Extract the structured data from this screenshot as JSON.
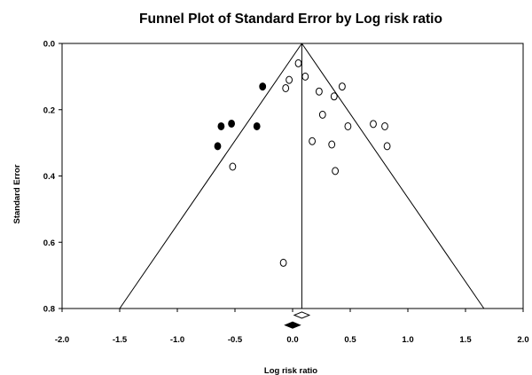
{
  "chart_data": {
    "type": "scatter",
    "title": "Funnel Plot of Standard Error by Log risk ratio",
    "xlabel": "Log risk ratio",
    "ylabel": "Standard Error",
    "xlim": [
      -2.0,
      2.0
    ],
    "ylim": [
      0.0,
      0.8
    ],
    "y_axis_inverted": true,
    "x_ticks": [
      "-2.0",
      "-1.5",
      "-1.0",
      "-0.5",
      "0.0",
      "0.5",
      "1.0",
      "1.5",
      "2.0"
    ],
    "y_ticks": [
      "0.0",
      "0.2",
      "0.4",
      "0.6",
      "0.8"
    ],
    "pooled_estimate": 0.08,
    "funnel": {
      "top": [
        0.08,
        0.0
      ],
      "bottom_left": [
        -1.5,
        0.8
      ],
      "bottom_right": [
        1.66,
        0.8
      ]
    },
    "series": [
      {
        "marker": "open-circle",
        "points": [
          [
            0.05,
            0.06
          ],
          [
            0.11,
            0.1
          ],
          [
            -0.03,
            0.11
          ],
          [
            -0.06,
            0.135
          ],
          [
            0.23,
            0.145
          ],
          [
            0.36,
            0.16
          ],
          [
            0.43,
            0.13
          ],
          [
            0.26,
            0.215
          ],
          [
            0.48,
            0.25
          ],
          [
            0.7,
            0.243
          ],
          [
            0.8,
            0.25
          ],
          [
            0.82,
            0.31
          ],
          [
            0.17,
            0.295
          ],
          [
            0.34,
            0.305
          ],
          [
            0.37,
            0.385
          ],
          [
            -0.52,
            0.372
          ],
          [
            -0.08,
            0.662
          ]
        ]
      },
      {
        "marker": "filled-circle",
        "points": [
          [
            -0.26,
            0.13
          ],
          [
            -0.53,
            0.242
          ],
          [
            -0.62,
            0.25
          ],
          [
            -0.31,
            0.25
          ],
          [
            -0.65,
            0.31
          ]
        ]
      }
    ],
    "summary_diamonds": [
      {
        "style": "open",
        "x": 0.08,
        "y": 0.82,
        "halfwidth": 0.065
      },
      {
        "style": "filled",
        "x": 0.0,
        "y": 0.85,
        "halfwidth": 0.065
      }
    ]
  }
}
